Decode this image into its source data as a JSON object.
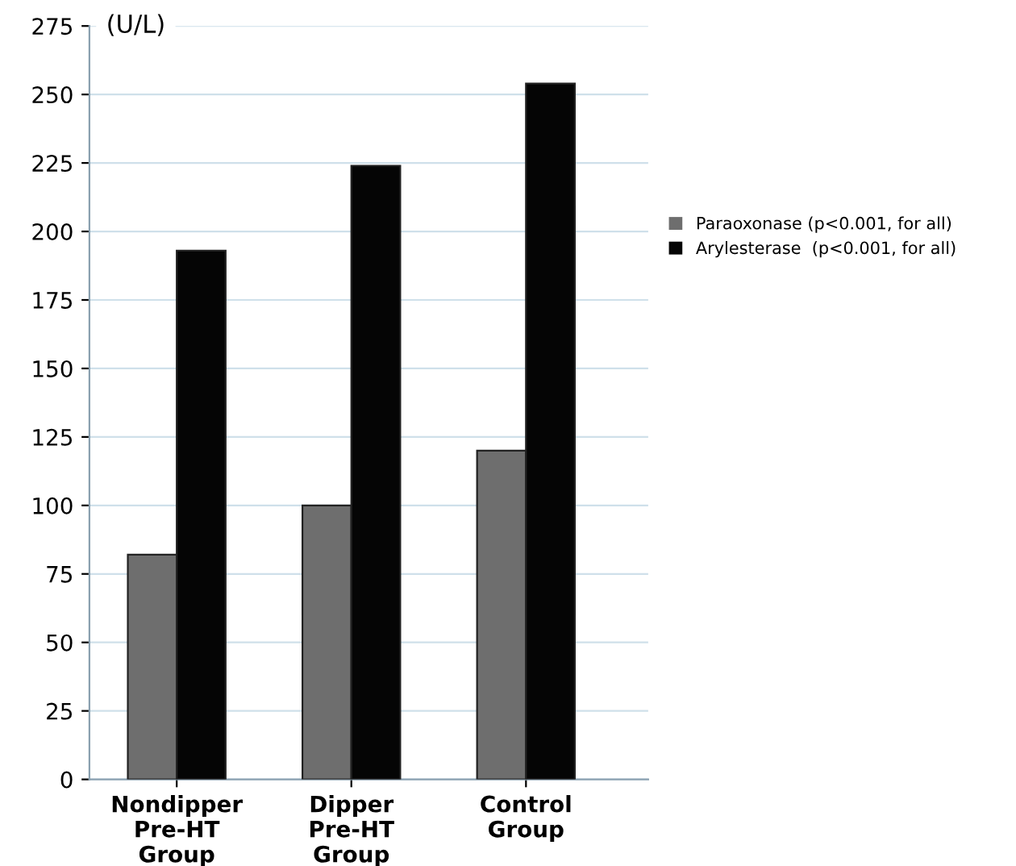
{
  "chart_data": {
    "type": "bar",
    "ylabel": "(U/L)",
    "categories": [
      "Nondipper\nPre-HT\nGroup",
      "Dipper\nPre-HT\nGroup",
      "Control\nGroup"
    ],
    "series": [
      {
        "name": "Paraoxonase (p<0.001, for all)",
        "color": "#6e6e6e",
        "values": [
          82,
          100,
          120
        ]
      },
      {
        "name": "Arylesterase  (p<0.001, for all)",
        "color": "#050505",
        "values": [
          193,
          224,
          254
        ]
      }
    ],
    "ylim": [
      0,
      275
    ],
    "yticks": [
      0,
      25,
      50,
      75,
      100,
      125,
      150,
      175,
      200,
      225,
      250,
      275
    ],
    "grid": "y",
    "legend": "right"
  }
}
